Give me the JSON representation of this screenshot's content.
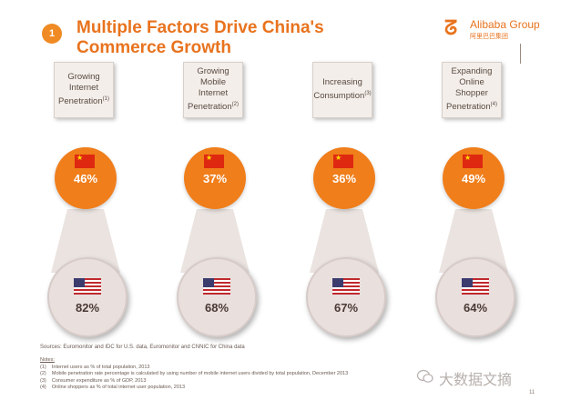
{
  "slide": {
    "number": "1",
    "title": "Multiple Factors Drive China's Commerce Growth",
    "logo": {
      "name": "Alibaba Group",
      "sub": "阿里巴巴集团"
    }
  },
  "factors": [
    {
      "label": "Growing Internet Penetration",
      "note": "(1)",
      "china": "46%",
      "us": "82%"
    },
    {
      "label": "Growing Mobile Internet Penetration",
      "note": "(2)",
      "china": "37%",
      "us": "68%"
    },
    {
      "label": "Increasing Consumption",
      "note": "(3)",
      "china": "36%",
      "us": "67%"
    },
    {
      "label": "Expanding Online Shopper Penetration",
      "note": "(4)",
      "china": "49%",
      "us": "64%"
    }
  ],
  "footer": {
    "sources": "Sources: Euromonitor and IDC for U.S. data, Euromonitor and CNNIC for China data",
    "notes_title": "Notes:",
    "notes": [
      {
        "num": "(1)",
        "text": "Internet users as % of total population, 2013"
      },
      {
        "num": "(2)",
        "text": "Mobile penetration rate percentage is calculated by using number of mobile internet users divided by total population, December 2013"
      },
      {
        "num": "(3)",
        "text": "Consumer expenditure as % of GDP, 2013"
      },
      {
        "num": "(4)",
        "text": "Online shoppers as % of total internet user population, 2013"
      }
    ],
    "page": "11"
  },
  "watermark": {
    "text": "大数据文摘",
    "icon": "wechat-icon"
  },
  "colors": {
    "accent": "#e8731e",
    "china_circle": "#f07e1b",
    "us_circle": "#e9dfdd"
  }
}
